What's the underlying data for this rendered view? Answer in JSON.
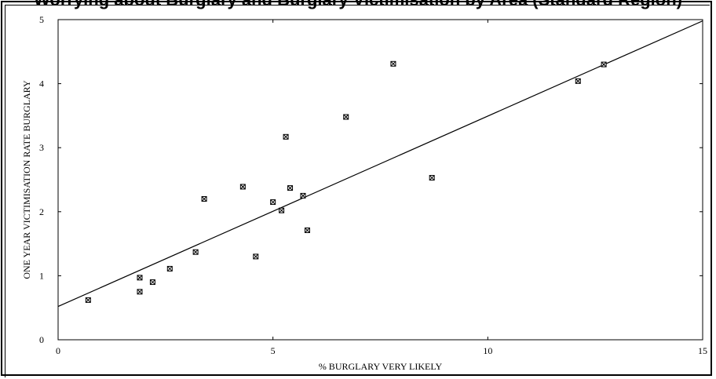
{
  "chart_data": {
    "type": "scatter",
    "title": "Worrying about Burglary and Burglary Victimisation by Area (Standard Region)",
    "xlabel": "% BURGLARY VERY LIKELY",
    "ylabel": "ONE YEAR VICTIMISATION RATE BURGLARY",
    "xlim": [
      0,
      15
    ],
    "ylim": [
      0,
      5
    ],
    "x_ticks": [
      0,
      5,
      10,
      15
    ],
    "y_ticks": [
      0,
      1,
      2,
      3,
      4,
      5
    ],
    "grid": false,
    "legend": "none",
    "series": [
      {
        "points": [
          {
            "x": 0.7,
            "y": 0.62
          },
          {
            "x": 1.9,
            "y": 0.97
          },
          {
            "x": 1.9,
            "y": 0.75
          },
          {
            "x": 2.2,
            "y": 0.9
          },
          {
            "x": 2.6,
            "y": 1.11
          },
          {
            "x": 3.2,
            "y": 1.37
          },
          {
            "x": 3.4,
            "y": 2.2
          },
          {
            "x": 4.3,
            "y": 2.39
          },
          {
            "x": 4.6,
            "y": 1.3
          },
          {
            "x": 5.0,
            "y": 2.15
          },
          {
            "x": 5.2,
            "y": 2.02
          },
          {
            "x": 5.3,
            "y": 3.17
          },
          {
            "x": 5.4,
            "y": 2.37
          },
          {
            "x": 5.7,
            "y": 2.25
          },
          {
            "x": 5.8,
            "y": 1.71
          },
          {
            "x": 6.7,
            "y": 3.48
          },
          {
            "x": 7.8,
            "y": 4.31
          },
          {
            "x": 8.7,
            "y": 2.53
          },
          {
            "x": 12.1,
            "y": 4.04
          },
          {
            "x": 12.7,
            "y": 4.3
          }
        ]
      }
    ],
    "trendline": {
      "x": [
        0,
        15
      ],
      "y": [
        0.52,
        4.98
      ]
    }
  },
  "style": {
    "color": "#000000"
  }
}
